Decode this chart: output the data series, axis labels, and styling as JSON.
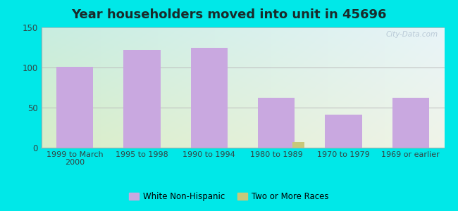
{
  "title": "Year householders moved into unit in 45696",
  "categories": [
    "1999 to March\n2000",
    "1995 to 1998",
    "1990 to 1994",
    "1980 to 1989",
    "1970 to 1979",
    "1969 or earlier"
  ],
  "white_non_hispanic": [
    101,
    122,
    125,
    62,
    41,
    62
  ],
  "two_or_more_races": [
    0,
    0,
    0,
    7,
    0,
    0
  ],
  "bar_color_white": "#c9a8e0",
  "bar_color_two": "#c8c87a",
  "ylim": [
    0,
    150
  ],
  "yticks": [
    0,
    50,
    100,
    150
  ],
  "bg_outer": "#00e8e8",
  "bg_topleft": "#c8ede0",
  "bg_topright": "#e8f4f8",
  "bg_bottomleft": "#d8edc8",
  "bg_bottomright": "#f0f4e8",
  "grid_color": "#bbbbbb",
  "title_fontsize": 13,
  "title_color": "#1a2a2a",
  "tick_color": "#334444",
  "legend_label_white": "White Non-Hispanic",
  "legend_label_two": "Two or More Races",
  "watermark": "City-Data.com"
}
